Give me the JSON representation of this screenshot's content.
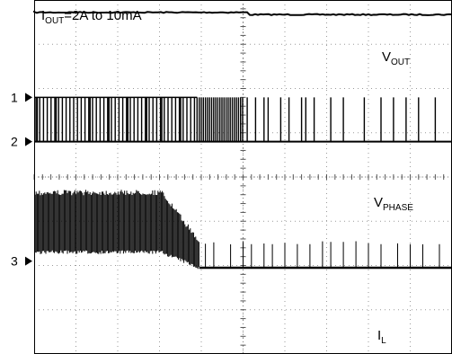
{
  "chart_data": {
    "type": "line",
    "title": "",
    "annotation": {
      "main": "I",
      "sub": "OUT",
      "rest": "=2A to 10mA"
    },
    "grid": {
      "on": true,
      "divisions_x": 10,
      "divisions_y": 8
    },
    "channel_markers": [
      {
        "label": "1",
        "ref_div": 2.2
      },
      {
        "label": "2",
        "ref_div": 3.2
      },
      {
        "label": "3",
        "ref_div": 5.9
      }
    ],
    "series": [
      {
        "name": "V",
        "sub": "OUT"
      },
      {
        "name": "V",
        "sub": "PHASE"
      },
      {
        "name": "I",
        "sub": "L"
      }
    ],
    "traces": {
      "vout": {
        "level_div": 0.28,
        "step_at_div": 5.1,
        "step_div": 0.05
      },
      "vphase": {
        "low_div": 3.2,
        "high_div": 2.2,
        "dense_until_div": 3.9,
        "medium_until_div": 5.0,
        "sparse_pulse_times_div": [
          5.1,
          5.3,
          5.5,
          5.6,
          5.9,
          6.1,
          6.4,
          6.5,
          6.7,
          7.1,
          7.4,
          7.9,
          8.3,
          8.6,
          8.9,
          9.2,
          9.6
        ]
      },
      "il": {
        "low_div": 6.05,
        "band_top_div": 4.35,
        "band_bottom_div": 5.7,
        "ramp_start_div": 3.05,
        "ramp_end_div": 3.95,
        "sparse_spike_times_div": [
          4.1,
          4.3,
          4.7,
          5.0,
          5.2,
          5.5,
          5.7,
          6.0,
          6.3,
          6.6,
          6.9,
          7.1,
          7.4,
          7.7,
          8.0,
          8.3,
          8.7,
          9.0,
          9.3,
          9.7
        ]
      }
    }
  }
}
